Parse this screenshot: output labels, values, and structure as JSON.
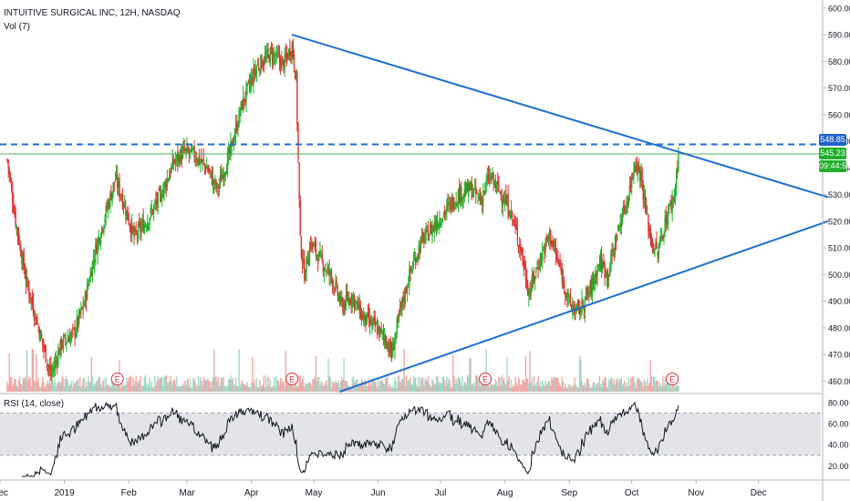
{
  "header": {
    "title": "INTUITIVE SURGICAL INC, 12H, NASDAQ",
    "volume_label": "Vol (7)",
    "rsi_label": "RSI (14, close)"
  },
  "price_badges": {
    "resistance": "548.85",
    "last": "545.23",
    "countdown": "09:44:54"
  },
  "colors": {
    "up": "#26a69a",
    "up_candle": "#20b02a",
    "down": "#e0312f",
    "trendline": "#1e6fd0",
    "support_line": "#4caf50",
    "rsi_band": "#e3e4e8"
  },
  "earnings_marker": "E",
  "chart_data": {
    "type": "candlestick",
    "title": "INTUITIVE SURGICAL INC, 12H, NASDAQ",
    "price_axis": {
      "ylim": [
        456,
        602
      ],
      "ticks": [
        460,
        470,
        480,
        490,
        500,
        510,
        520,
        530,
        540,
        550,
        560,
        570,
        580,
        590,
        600
      ],
      "tick_labels": [
        "460.00",
        "470.00",
        "480.00",
        "490.00",
        "500.00",
        "510.00",
        "520.00",
        "530.00",
        "540.00",
        "550.00",
        "560.00",
        "570.00",
        "580.00",
        "590.00",
        "600.00"
      ]
    },
    "time_axis": {
      "range": [
        "2018-12-01",
        "2019-12-31"
      ],
      "ticks": [
        {
          "label": "Dec",
          "date": "2018-12-01"
        },
        {
          "label": "2019",
          "date": "2019-01-01"
        },
        {
          "label": "Feb",
          "date": "2019-02-01"
        },
        {
          "label": "Mar",
          "date": "2019-03-01"
        },
        {
          "label": "Apr",
          "date": "2019-04-01"
        },
        {
          "label": "May",
          "date": "2019-05-01"
        },
        {
          "label": "Jun",
          "date": "2019-06-01"
        },
        {
          "label": "Jul",
          "date": "2019-07-01"
        },
        {
          "label": "Aug",
          "date": "2019-08-01"
        },
        {
          "label": "Sep",
          "date": "2019-09-01"
        },
        {
          "label": "Oct",
          "date": "2019-10-01"
        },
        {
          "label": "Nov",
          "date": "2019-11-01"
        },
        {
          "label": "Dec",
          "date": "2019-12-01"
        }
      ]
    },
    "price_anchors": [
      {
        "date": "2018-12-01",
        "price": 543
      },
      {
        "date": "2018-12-05",
        "price": 520
      },
      {
        "date": "2018-12-10",
        "price": 498
      },
      {
        "date": "2018-12-16",
        "price": 480
      },
      {
        "date": "2018-12-22",
        "price": 462
      },
      {
        "date": "2018-12-27",
        "price": 474
      },
      {
        "date": "2019-01-02",
        "price": 478
      },
      {
        "date": "2019-01-07",
        "price": 489
      },
      {
        "date": "2019-01-12",
        "price": 508
      },
      {
        "date": "2019-01-17",
        "price": 522
      },
      {
        "date": "2019-01-22",
        "price": 536
      },
      {
        "date": "2019-01-26",
        "price": 527
      },
      {
        "date": "2019-01-31",
        "price": 514
      },
      {
        "date": "2019-02-06",
        "price": 520
      },
      {
        "date": "2019-02-13",
        "price": 530
      },
      {
        "date": "2019-02-19",
        "price": 542
      },
      {
        "date": "2019-02-24",
        "price": 546
      },
      {
        "date": "2019-03-01",
        "price": 545
      },
      {
        "date": "2019-03-07",
        "price": 540
      },
      {
        "date": "2019-03-12",
        "price": 532
      },
      {
        "date": "2019-03-18",
        "price": 545
      },
      {
        "date": "2019-03-24",
        "price": 564
      },
      {
        "date": "2019-03-31",
        "price": 578
      },
      {
        "date": "2019-04-07",
        "price": 583
      },
      {
        "date": "2019-04-13",
        "price": 579
      },
      {
        "date": "2019-04-17",
        "price": 586
      },
      {
        "date": "2019-04-19",
        "price": 573
      },
      {
        "date": "2019-04-21",
        "price": 512
      },
      {
        "date": "2019-04-23",
        "price": 500
      },
      {
        "date": "2019-04-26",
        "price": 512
      },
      {
        "date": "2019-05-01",
        "price": 505
      },
      {
        "date": "2019-05-06",
        "price": 499
      },
      {
        "date": "2019-05-11",
        "price": 488
      },
      {
        "date": "2019-05-16",
        "price": 492
      },
      {
        "date": "2019-05-21",
        "price": 484
      },
      {
        "date": "2019-05-26",
        "price": 481
      },
      {
        "date": "2019-06-01",
        "price": 476
      },
      {
        "date": "2019-06-04",
        "price": 470
      },
      {
        "date": "2019-06-08",
        "price": 486
      },
      {
        "date": "2019-06-13",
        "price": 501
      },
      {
        "date": "2019-06-18",
        "price": 512
      },
      {
        "date": "2019-06-24",
        "price": 518
      },
      {
        "date": "2019-06-30",
        "price": 524
      },
      {
        "date": "2019-07-06",
        "price": 530
      },
      {
        "date": "2019-07-12",
        "price": 532
      },
      {
        "date": "2019-07-17",
        "price": 528
      },
      {
        "date": "2019-07-21",
        "price": 537
      },
      {
        "date": "2019-07-26",
        "price": 531
      },
      {
        "date": "2019-07-31",
        "price": 524
      },
      {
        "date": "2019-08-05",
        "price": 510
      },
      {
        "date": "2019-08-09",
        "price": 493
      },
      {
        "date": "2019-08-14",
        "price": 505
      },
      {
        "date": "2019-08-19",
        "price": 515
      },
      {
        "date": "2019-08-24",
        "price": 502
      },
      {
        "date": "2019-08-29",
        "price": 488
      },
      {
        "date": "2019-09-02",
        "price": 486
      },
      {
        "date": "2019-09-08",
        "price": 495
      },
      {
        "date": "2019-09-12",
        "price": 505
      },
      {
        "date": "2019-09-16",
        "price": 500
      },
      {
        "date": "2019-09-21",
        "price": 517
      },
      {
        "date": "2019-09-26",
        "price": 530
      },
      {
        "date": "2019-09-29",
        "price": 543
      },
      {
        "date": "2019-10-02",
        "price": 537
      },
      {
        "date": "2019-10-04",
        "price": 525
      },
      {
        "date": "2019-10-07",
        "price": 512
      },
      {
        "date": "2019-10-10",
        "price": 508
      },
      {
        "date": "2019-10-14",
        "price": 521
      },
      {
        "date": "2019-10-18",
        "price": 530
      },
      {
        "date": "2019-10-20",
        "price": 545.23
      }
    ],
    "trendlines": [
      {
        "name": "descending-resistance",
        "from": {
          "date": "2019-04-17",
          "price": 590
        },
        "to": {
          "date": "2019-12-31",
          "price": 529
        }
      },
      {
        "name": "ascending-support",
        "from": {
          "date": "2019-05-10",
          "price": 456
        },
        "to": {
          "date": "2019-12-31",
          "price": 520
        }
      }
    ],
    "horizontal_levels": [
      {
        "name": "resistance-dashed",
        "price": 548.85,
        "style": "dashed"
      },
      {
        "name": "last-price",
        "price": 545.23,
        "style": "solid"
      }
    ],
    "earnings_events": [
      "2019-01-23",
      "2019-04-17",
      "2019-07-19",
      "2019-10-17"
    ],
    "rsi": {
      "label": "RSI (14, close)",
      "ylim": [
        10,
        85
      ],
      "ticks": [
        20,
        40,
        60,
        80
      ],
      "tick_labels": [
        "20.00",
        "40.00",
        "60.00",
        "80.00"
      ],
      "band": [
        30,
        70
      ]
    }
  }
}
